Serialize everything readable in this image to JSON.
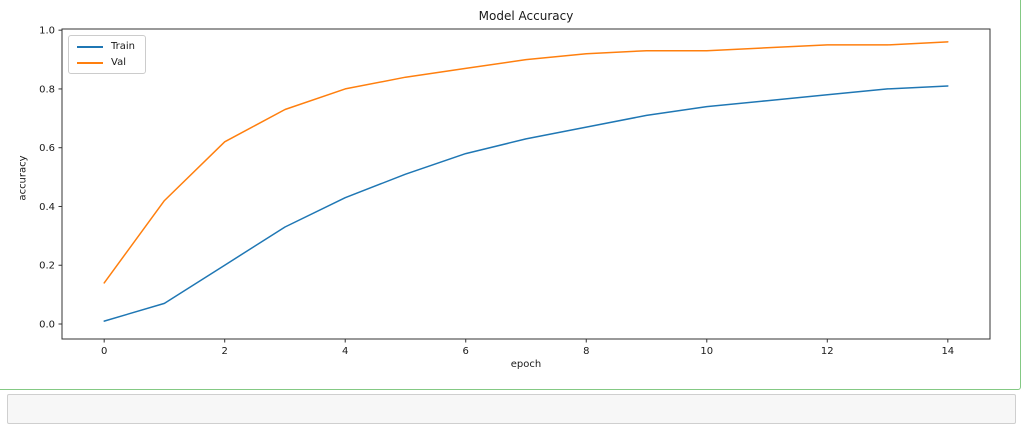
{
  "chart_data": {
    "type": "line",
    "title": "Model Accuracy",
    "xlabel": "epoch",
    "ylabel": "accuracy",
    "x": [
      0,
      1,
      2,
      3,
      4,
      5,
      6,
      7,
      8,
      9,
      10,
      11,
      12,
      13,
      14
    ],
    "series": [
      {
        "name": "Train",
        "color": "#1f77b4",
        "values": [
          0.01,
          0.07,
          0.2,
          0.33,
          0.43,
          0.51,
          0.58,
          0.63,
          0.67,
          0.71,
          0.74,
          0.76,
          0.78,
          0.8,
          0.81
        ]
      },
      {
        "name": "Val",
        "color": "#ff7f0e",
        "values": [
          0.14,
          0.42,
          0.62,
          0.73,
          0.8,
          0.84,
          0.87,
          0.9,
          0.92,
          0.93,
          0.93,
          0.94,
          0.95,
          0.95,
          0.96
        ]
      }
    ],
    "x_ticks": {
      "values": [
        0,
        2,
        4,
        6,
        8,
        10,
        12,
        14
      ],
      "labels": [
        "0",
        "2",
        "4",
        "6",
        "8",
        "10",
        "12",
        "14"
      ]
    },
    "y_ticks": {
      "values": [
        0.0,
        0.2,
        0.4,
        0.6,
        0.8,
        1.0
      ],
      "labels": [
        "0.0",
        "0.2",
        "0.4",
        "0.6",
        "0.8",
        "1.0"
      ]
    },
    "xlim": [
      -0.7,
      14.7
    ],
    "ylim": [
      -0.051,
      1.004
    ],
    "legend_position": "upper left",
    "grid": false,
    "spine_color": "#333333"
  },
  "notebook": {
    "cell_border_color": "#84c984",
    "next_cell": {
      "value": "",
      "background": "#f7f7f7",
      "border_color": "#cfcfcf"
    }
  }
}
